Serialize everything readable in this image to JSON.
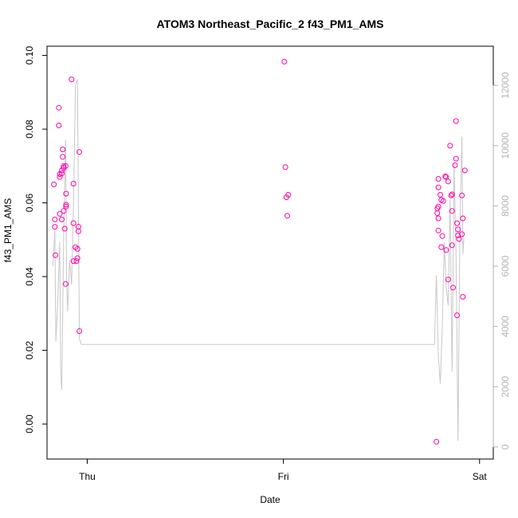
{
  "chart_data": {
    "type": "scatter",
    "title": "ATOM3 Northeast_Pacific_2 f43_PM1_AMS",
    "xlabel": "Date",
    "ylabel": "f43_PM1_AMS",
    "x_tick_labels": [
      "Thu",
      "Fri",
      "Sat"
    ],
    "x_tick_days": [
      0,
      1,
      2
    ],
    "xlim_days": [
      -0.205,
      2.07
    ],
    "ylim": [
      -0.0095,
      0.1025
    ],
    "y_ticks": [
      "0.00",
      "0.02",
      "0.04",
      "0.06",
      "0.08",
      "0.10"
    ],
    "y_tick_values": [
      0.0,
      0.02,
      0.04,
      0.06,
      0.08,
      0.1
    ],
    "y2_ticks": [
      "0",
      "2000",
      "4000",
      "6000",
      "8000",
      "10000",
      "12000"
    ],
    "y2_tick_values": [
      0,
      2000,
      4000,
      6000,
      8000,
      10000,
      12000
    ],
    "y2lim": [
      -400,
      13300
    ],
    "grid": false,
    "colors": {
      "points": "#ff00aa",
      "secondary_line": "#c8c8c8",
      "axis": "#000000",
      "secondary_axis": "#b3b3b3"
    },
    "series": [
      {
        "values": [
          {
            "x": -0.17,
            "y": 0.065
          },
          {
            "x": -0.165,
            "y": 0.0555
          },
          {
            "x": -0.165,
            "y": 0.0535
          },
          {
            "x": -0.162,
            "y": 0.0458
          },
          {
            "x": -0.145,
            "y": 0.0858
          },
          {
            "x": -0.145,
            "y": 0.081
          },
          {
            "x": -0.14,
            "y": 0.0678
          },
          {
            "x": -0.14,
            "y": 0.067
          },
          {
            "x": -0.14,
            "y": 0.057
          },
          {
            "x": -0.13,
            "y": 0.0688
          },
          {
            "x": -0.13,
            "y": 0.068
          },
          {
            "x": -0.13,
            "y": 0.0555
          },
          {
            "x": -0.125,
            "y": 0.0745
          },
          {
            "x": -0.125,
            "y": 0.0725
          },
          {
            "x": -0.12,
            "y": 0.07
          },
          {
            "x": -0.12,
            "y": 0.0695
          },
          {
            "x": -0.12,
            "y": 0.0578
          },
          {
            "x": -0.115,
            "y": 0.053
          },
          {
            "x": -0.11,
            "y": 0.038
          },
          {
            "x": -0.11,
            "y": 0.07
          },
          {
            "x": -0.108,
            "y": 0.0625
          },
          {
            "x": -0.108,
            "y": 0.0595
          },
          {
            "x": -0.108,
            "y": 0.059
          },
          {
            "x": -0.08,
            "y": 0.0935
          },
          {
            "x": -0.07,
            "y": 0.0652
          },
          {
            "x": -0.07,
            "y": 0.0545
          },
          {
            "x": -0.07,
            "y": 0.0442
          },
          {
            "x": -0.06,
            "y": 0.048
          },
          {
            "x": -0.055,
            "y": 0.0442
          },
          {
            "x": -0.05,
            "y": 0.0475
          },
          {
            "x": -0.05,
            "y": 0.045
          },
          {
            "x": -0.045,
            "y": 0.0535
          },
          {
            "x": -0.045,
            "y": 0.0523
          },
          {
            "x": -0.04,
            "y": 0.0738
          },
          {
            "x": -0.04,
            "y": 0.0252
          },
          {
            "x": 1.005,
            "y": 0.0983
          },
          {
            "x": 1.01,
            "y": 0.0697
          },
          {
            "x": 1.015,
            "y": 0.0615
          },
          {
            "x": 1.02,
            "y": 0.0565
          },
          {
            "x": 1.025,
            "y": 0.0622
          },
          {
            "x": 1.78,
            "y": -0.0048
          },
          {
            "x": 1.785,
            "y": 0.0585
          },
          {
            "x": 1.785,
            "y": 0.0572
          },
          {
            "x": 1.79,
            "y": 0.0665
          },
          {
            "x": 1.79,
            "y": 0.0642
          },
          {
            "x": 1.79,
            "y": 0.059
          },
          {
            "x": 1.79,
            "y": 0.0558
          },
          {
            "x": 1.79,
            "y": 0.0525
          },
          {
            "x": 1.8,
            "y": 0.0622
          },
          {
            "x": 1.805,
            "y": 0.0608
          },
          {
            "x": 1.805,
            "y": 0.048
          },
          {
            "x": 1.81,
            "y": 0.051
          },
          {
            "x": 1.815,
            "y": 0.0605
          },
          {
            "x": 1.825,
            "y": 0.0672
          },
          {
            "x": 1.83,
            "y": 0.067
          },
          {
            "x": 1.83,
            "y": 0.0472
          },
          {
            "x": 1.84,
            "y": 0.0658
          },
          {
            "x": 1.84,
            "y": 0.0392
          },
          {
            "x": 1.85,
            "y": 0.0755
          },
          {
            "x": 1.855,
            "y": 0.062
          },
          {
            "x": 1.86,
            "y": 0.0623
          },
          {
            "x": 1.86,
            "y": 0.0578
          },
          {
            "x": 1.86,
            "y": 0.0485
          },
          {
            "x": 1.865,
            "y": 0.037
          },
          {
            "x": 1.875,
            "y": 0.0702
          },
          {
            "x": 1.88,
            "y": 0.0822
          },
          {
            "x": 1.88,
            "y": 0.072
          },
          {
            "x": 1.885,
            "y": 0.0545
          },
          {
            "x": 1.885,
            "y": 0.0295
          },
          {
            "x": 1.89,
            "y": 0.0528
          },
          {
            "x": 1.89,
            "y": 0.0512
          },
          {
            "x": 1.895,
            "y": 0.0502
          },
          {
            "x": 1.91,
            "y": 0.062
          },
          {
            "x": 1.91,
            "y": 0.0515
          },
          {
            "x": 1.915,
            "y": 0.0558
          },
          {
            "x": 1.915,
            "y": 0.0345
          },
          {
            "x": 1.925,
            "y": 0.0688
          }
        ]
      },
      {
        "axis": "right",
        "values": [
          {
            "x": -0.175,
            "y": 6000
          },
          {
            "x": -0.165,
            "y": 7200
          },
          {
            "x": -0.16,
            "y": 3500
          },
          {
            "x": -0.15,
            "y": 4800
          },
          {
            "x": -0.14,
            "y": 6800
          },
          {
            "x": -0.135,
            "y": 2400
          },
          {
            "x": -0.13,
            "y": 1900
          },
          {
            "x": -0.12,
            "y": 7000
          },
          {
            "x": -0.11,
            "y": 10200
          },
          {
            "x": -0.105,
            "y": 5600
          },
          {
            "x": -0.1,
            "y": 4500
          },
          {
            "x": -0.09,
            "y": 6200
          },
          {
            "x": -0.08,
            "y": 5400
          },
          {
            "x": -0.07,
            "y": 8000
          },
          {
            "x": -0.06,
            "y": 12000
          },
          {
            "x": -0.05,
            "y": 12200
          },
          {
            "x": -0.04,
            "y": 3600
          },
          {
            "x": -0.03,
            "y": 3400
          },
          {
            "x": 1.77,
            "y": 3400
          },
          {
            "x": 1.78,
            "y": 5700
          },
          {
            "x": 1.79,
            "y": 3000
          },
          {
            "x": 1.8,
            "y": 2100
          },
          {
            "x": 1.81,
            "y": 4000
          },
          {
            "x": 1.82,
            "y": 6800
          },
          {
            "x": 1.83,
            "y": 5300
          },
          {
            "x": 1.84,
            "y": 4700
          },
          {
            "x": 1.85,
            "y": 8200
          },
          {
            "x": 1.86,
            "y": 2500
          },
          {
            "x": 1.87,
            "y": 9400
          },
          {
            "x": 1.88,
            "y": 6400
          },
          {
            "x": 1.89,
            "y": 200
          },
          {
            "x": 1.9,
            "y": 7400
          },
          {
            "x": 1.91,
            "y": 10300
          },
          {
            "x": 1.915,
            "y": 6400
          },
          {
            "x": 1.92,
            "y": 6900
          }
        ]
      }
    ]
  }
}
